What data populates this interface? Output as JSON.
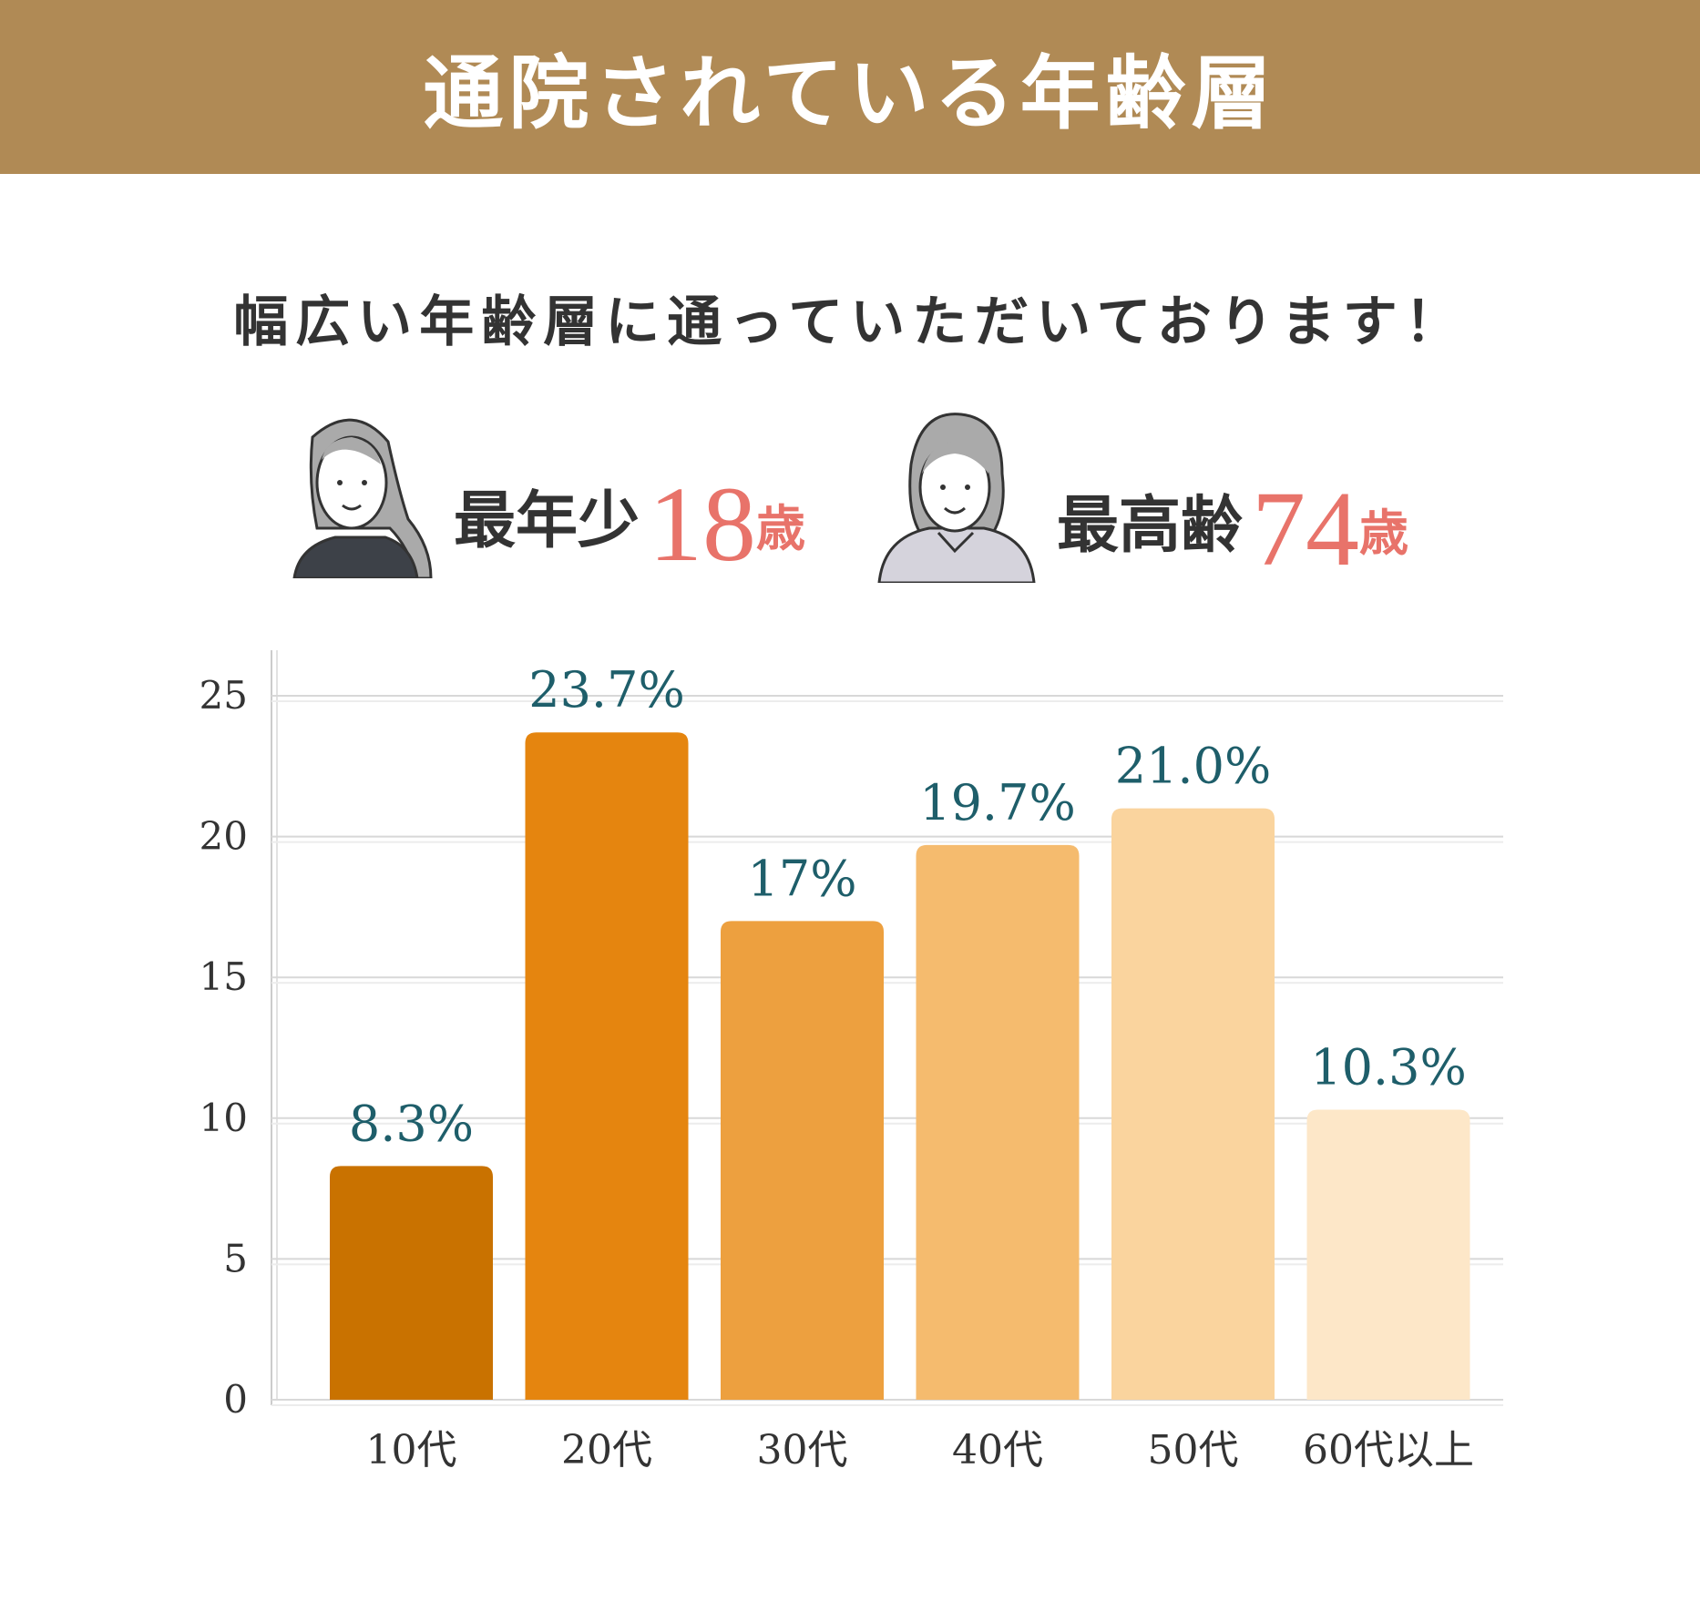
{
  "header": {
    "title": "通院されている年齢層"
  },
  "subtitle": "幅広い年齢層に通っていただいております！",
  "youngest": {
    "label": "最年少",
    "value": "18",
    "unit": "歳",
    "icon": "young-woman-icon"
  },
  "oldest": {
    "label": "最高齢",
    "value": "74",
    "unit": "歳",
    "icon": "elderly-woman-icon"
  },
  "chart_data": {
    "type": "bar",
    "categories": [
      "10代",
      "20代",
      "30代",
      "40代",
      "50代",
      "60代以上"
    ],
    "values": [
      8.3,
      23.7,
      17,
      19.7,
      21.0,
      10.3
    ],
    "data_labels": [
      "8.3%",
      "23.7%",
      "17%",
      "19.7%",
      "21.0%",
      "10.3%"
    ],
    "yticks": [
      "0",
      "5",
      "10",
      "15",
      "20",
      "25"
    ],
    "ylim": [
      0,
      25
    ],
    "grid": true,
    "colors": [
      "#C97200",
      "#E5850F",
      "#EDA03F",
      "#F5BB6E",
      "#FAD49E",
      "#FDE7C8"
    ],
    "label_color": "#1E5E6A"
  }
}
